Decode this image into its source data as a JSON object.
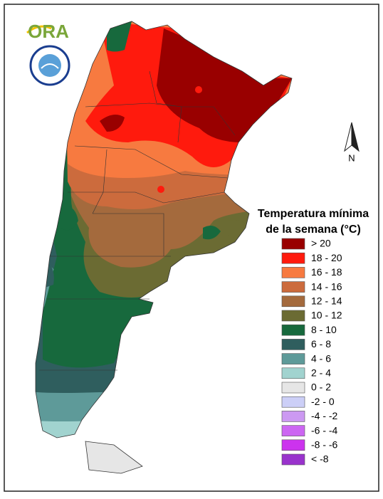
{
  "logo": {
    "text": "ORA"
  },
  "north_arrow": {
    "label": "N"
  },
  "legend": {
    "title_lines": [
      "Temperatura mínima",
      "de la semana (°C)"
    ],
    "items": [
      {
        "label": "> 20",
        "color": "#990000"
      },
      {
        "label": "18 - 20",
        "color": "#ff1a0d"
      },
      {
        "label": "16 - 18",
        "color": "#f77a40"
      },
      {
        "label": "14 - 16",
        "color": "#cc6b3d"
      },
      {
        "label": "12 - 14",
        "color": "#a46a3d"
      },
      {
        "label": "10 - 12",
        "color": "#6b6b33"
      },
      {
        "label": "8 - 10",
        "color": "#17693d"
      },
      {
        "label": "6 - 8",
        "color": "#2f5e5e"
      },
      {
        "label": "4 - 6",
        "color": "#5e9a99"
      },
      {
        "label": "2 - 4",
        "color": "#a1d3cf"
      },
      {
        "label": "0 - 2",
        "color": "#e6e6e6"
      },
      {
        "label": "-2 - 0",
        "color": "#cccff7"
      },
      {
        "label": "-4 - -2",
        "color": "#cc99f2"
      },
      {
        "label": "-6 - -4",
        "color": "#cc66f2"
      },
      {
        "label": "-8 - -6",
        "color": "#cc33ee"
      },
      {
        "label": "< -8",
        "color": "#9933cc"
      }
    ]
  }
}
